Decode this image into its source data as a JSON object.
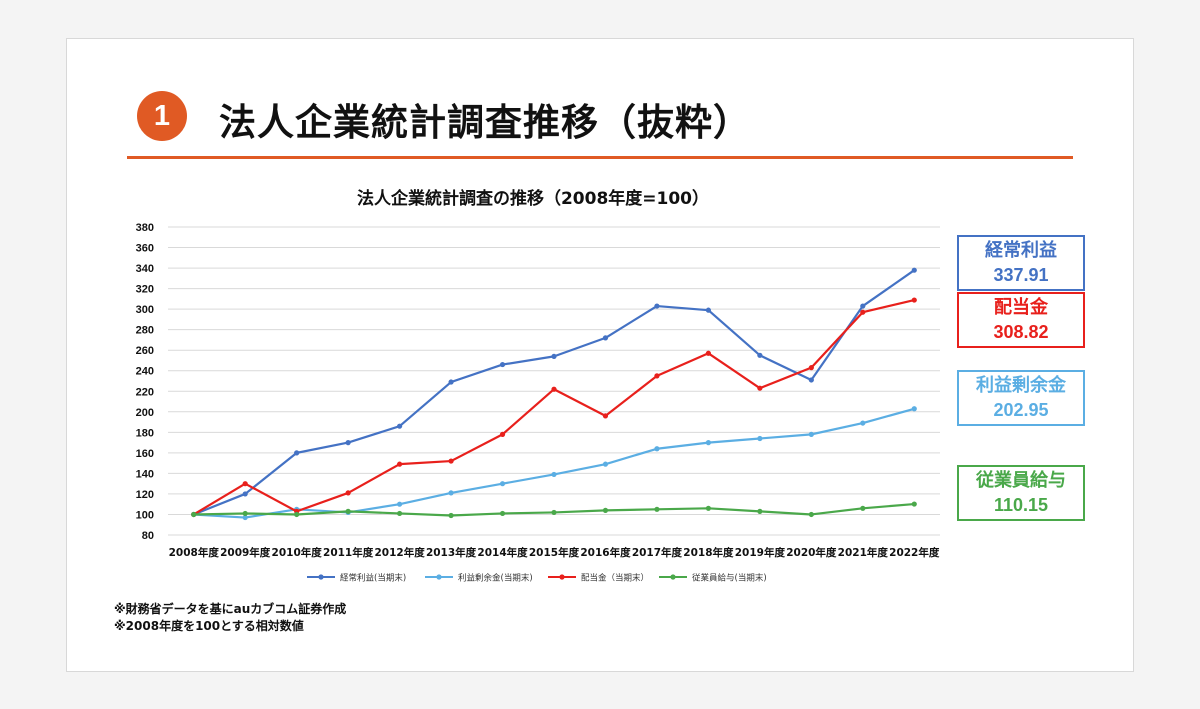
{
  "slide": {
    "badge_number": "1",
    "title": "法人企業統計調査推移（抜粋）",
    "accent_color": "#e05a24"
  },
  "chart_data": {
    "type": "line",
    "title": "法人企業統計調査の推移（2008年度=100）",
    "xlabel": "",
    "ylabel": "",
    "ylim": [
      80,
      380
    ],
    "ytick_step": 20,
    "grid": true,
    "legend_position": "bottom",
    "categories": [
      "2008年度",
      "2009年度",
      "2010年度",
      "2011年度",
      "2012年度",
      "2013年度",
      "2014年度",
      "2015年度",
      "2016年度",
      "2017年度",
      "2018年度",
      "2019年度",
      "2020年度",
      "2021年度",
      "2022年度"
    ],
    "series": [
      {
        "name": "経常利益(当期末)",
        "color": "#4472c4",
        "values": [
          100,
          120,
          160,
          170,
          186,
          229,
          246,
          254,
          272,
          303,
          299,
          255,
          231,
          303,
          337.91
        ]
      },
      {
        "name": "利益剰余金(当期末)",
        "color": "#5baee3",
        "values": [
          100,
          97,
          105,
          102,
          110,
          121,
          130,
          139,
          149,
          164,
          170,
          174,
          178,
          189,
          202.95
        ]
      },
      {
        "name": "配当金（当期末）",
        "color": "#e8201c",
        "values": [
          100,
          130,
          103,
          121,
          149,
          152,
          178,
          222,
          196,
          235,
          257,
          223,
          243,
          297,
          308.82
        ]
      },
      {
        "name": "従業員給与(当期末)",
        "color": "#4aa84a",
        "values": [
          100,
          101,
          100,
          103,
          101,
          99,
          101,
          102,
          104,
          105,
          106,
          103,
          100,
          106,
          110.15
        ]
      }
    ]
  },
  "callouts": [
    {
      "name": "経常利益",
      "value": "337.91",
      "color": "#4472c4"
    },
    {
      "name": "配当金",
      "value": "308.82",
      "color": "#e8201c"
    },
    {
      "name": "利益剰余金",
      "value": "202.95",
      "color": "#5baee3"
    },
    {
      "name": "従業員給与",
      "value": "110.15",
      "color": "#4aa84a"
    }
  ],
  "notes": [
    "※財務省データを基にauカブコム証券作成",
    "※2008年度を100とする相対数値"
  ]
}
